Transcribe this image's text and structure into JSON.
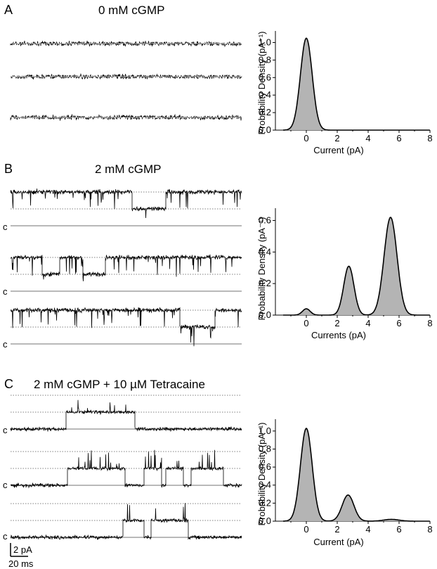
{
  "panels": [
    {
      "letter": "A",
      "title": "0 mM cGMP",
      "closed_label": "",
      "trace_count": 3,
      "levels_pA": [
        0
      ],
      "histogram": {
        "xlabel": "Current (pA)",
        "ylabel": "Probability Density (pA⁻¹)",
        "xlim": [
          -2,
          8
        ],
        "ylim": [
          0,
          1.1
        ],
        "xticks": [
          0,
          2,
          4,
          6,
          8
        ],
        "yticks": [
          0.0,
          0.2,
          0.4,
          0.6,
          0.8,
          1.0
        ],
        "ytick_labels": [
          "0.0",
          "0.2",
          "0.4",
          "0.6",
          "0.8",
          "1.0"
        ],
        "gaussians": [
          {
            "mean": 0.0,
            "peak": 1.05,
            "sd": 0.38
          }
        ]
      }
    },
    {
      "letter": "B",
      "title": "2 mM cGMP",
      "closed_label": "c",
      "trace_count": 3,
      "levels_pA": [
        0,
        2.7,
        5.4
      ],
      "histogram": {
        "xlabel": "Currents (pA)",
        "ylabel": "Probability Density (pA⁻¹)",
        "xlim": [
          -2,
          8
        ],
        "ylim": [
          0,
          0.66
        ],
        "xticks": [
          0,
          2,
          4,
          6,
          8
        ],
        "yticks": [
          0.0,
          0.2,
          0.4,
          0.6
        ],
        "ytick_labels": [
          "0.0",
          "0.2",
          "0.4",
          "0.6"
        ],
        "gaussians": [
          {
            "mean": 0.0,
            "peak": 0.04,
            "sd": 0.25
          },
          {
            "mean": 2.75,
            "peak": 0.31,
            "sd": 0.33
          },
          {
            "mean": 5.45,
            "peak": 0.62,
            "sd": 0.42
          }
        ]
      }
    },
    {
      "letter": "C",
      "title": "2 mM cGMP + 10 µM Tetracaine",
      "closed_label": "c",
      "trace_count": 3,
      "levels_pA": [
        0,
        2.7,
        5.4
      ],
      "histogram": {
        "xlabel": "Current (pA)",
        "ylabel": "Probability Density (pA⁻¹)",
        "xlim": [
          -2,
          8
        ],
        "ylim": [
          0,
          1.1
        ],
        "xticks": [
          0,
          2,
          4,
          6,
          8
        ],
        "yticks": [
          0.0,
          0.2,
          0.4,
          0.6,
          0.8,
          1.0
        ],
        "ytick_labels": [
          "0.0",
          "0.2",
          "0.4",
          "0.6",
          "0.8",
          "1.0"
        ],
        "gaussians": [
          {
            "mean": 0.0,
            "peak": 1.03,
            "sd": 0.38
          },
          {
            "mean": 2.7,
            "peak": 0.29,
            "sd": 0.38
          },
          {
            "mean": 5.5,
            "peak": 0.02,
            "sd": 0.5
          }
        ]
      }
    }
  ],
  "scale_bar": {
    "current": "2 pA",
    "time": "20 ms"
  },
  "chart_data": [
    {
      "type": "area",
      "panel": "A",
      "title": "0 mM cGMP",
      "xlabel": "Current (pA)",
      "ylabel": "Probability Density (pA⁻¹)",
      "xlim": [
        -2,
        8
      ],
      "ylim": [
        0,
        1.1
      ],
      "peaks": [
        {
          "x": 0.0,
          "y": 1.05
        }
      ]
    },
    {
      "type": "area",
      "panel": "B",
      "title": "2 mM cGMP",
      "xlabel": "Currents (pA)",
      "ylabel": "Probability Density (pA⁻¹)",
      "xlim": [
        -2,
        8
      ],
      "ylim": [
        0,
        0.66
      ],
      "peaks": [
        {
          "x": 0.0,
          "y": 0.04
        },
        {
          "x": 2.75,
          "y": 0.31
        },
        {
          "x": 5.45,
          "y": 0.62
        }
      ]
    },
    {
      "type": "area",
      "panel": "C",
      "title": "2 mM cGMP + 10 µM Tetracaine",
      "xlabel": "Current (pA)",
      "ylabel": "Probability Density (pA⁻¹)",
      "xlim": [
        -2,
        8
      ],
      "ylim": [
        0,
        1.1
      ],
      "peaks": [
        {
          "x": 0.0,
          "y": 1.03
        },
        {
          "x": 2.7,
          "y": 0.29
        },
        {
          "x": 5.5,
          "y": 0.02
        }
      ]
    }
  ]
}
